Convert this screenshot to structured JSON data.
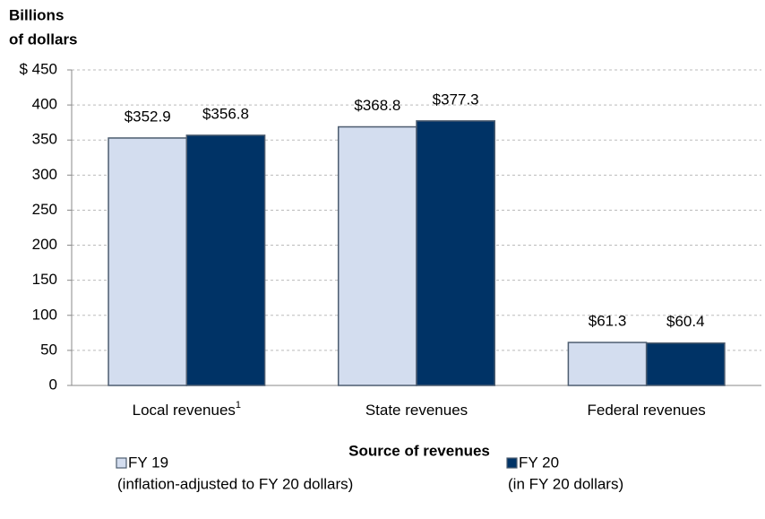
{
  "chart_data": {
    "type": "bar",
    "ylabel": [
      "Billions",
      "of dollars"
    ],
    "xlabel": "Source of revenues",
    "categories": [
      "Local revenues",
      "State revenues",
      "Federal revenues"
    ],
    "category_notes": [
      "1",
      null,
      null
    ],
    "series": [
      {
        "name": "FY 19",
        "note": "(inflation-adjusted to FY 20 dollars)",
        "color": "#d3ddef",
        "values": [
          352.9,
          368.8,
          61.3
        ],
        "value_labels": [
          "$352.9",
          "$368.8",
          "$61.3"
        ]
      },
      {
        "name": "FY 20",
        "note": "(in FY 20 dollars)",
        "color": "#003366",
        "values": [
          356.8,
          377.3,
          60.4
        ],
        "value_labels": [
          "$356.8",
          "$377.3",
          "$60.4"
        ]
      }
    ],
    "ylim": [
      0,
      450
    ],
    "yticks": [
      0,
      50,
      100,
      150,
      200,
      250,
      300,
      350,
      400,
      {
        "value": 450,
        "label": "$ 450"
      }
    ],
    "grid": true
  }
}
